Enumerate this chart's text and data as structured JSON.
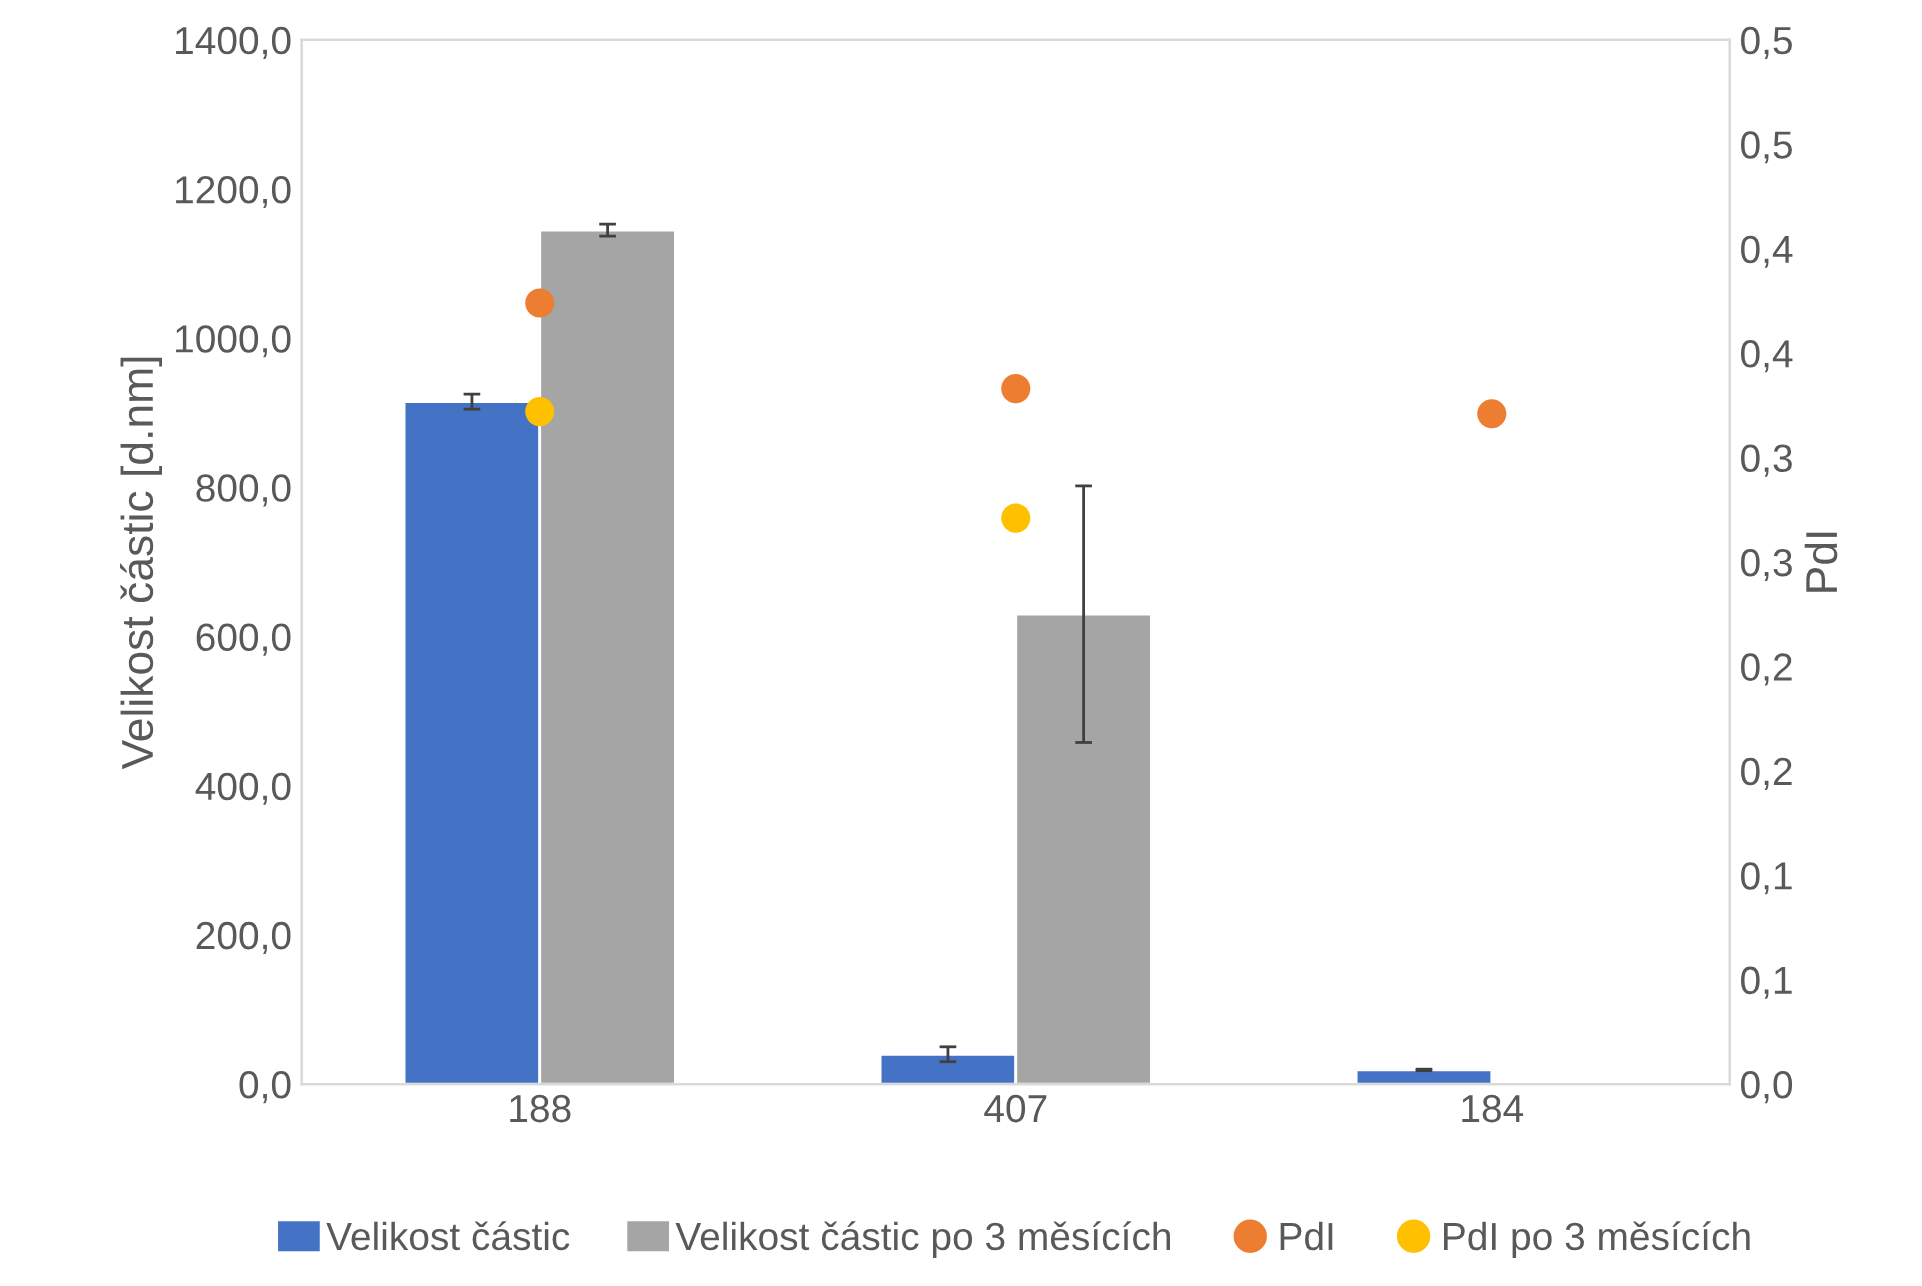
{
  "chart_data": {
    "type": "bar",
    "ylabel": "Velikost částic [d.nm]",
    "y2label": "PdI",
    "categories": [
      "188",
      "407",
      "184"
    ],
    "series": [
      {
        "name": "Velikost částic",
        "color": "#4472c4",
        "values": [
          915,
          40,
          19
        ],
        "errors": [
          10,
          10,
          1
        ]
      },
      {
        "name": "Velikost částic po 3 měsících",
        "color": "#a5a5a5",
        "values": [
          1145,
          630,
          null
        ],
        "errors": [
          8,
          172,
          null
        ]
      },
      {
        "name": "PdI",
        "type": "scatter",
        "axis": "y2",
        "color": "#ed7d31",
        "x": [
          "188",
          "407",
          "184"
        ],
        "values": [
          0.374,
          0.333,
          0.321
        ]
      },
      {
        "name": "PdI po 3 měsících",
        "type": "scatter",
        "axis": "y2",
        "color": "#ffc000",
        "x": [
          "188",
          "407",
          "184"
        ],
        "values": [
          0.322,
          0.271,
          null
        ]
      }
    ],
    "ylim": [
      0,
      1400
    ],
    "yticks": [
      {
        "value": 0,
        "label": "0,0"
      },
      {
        "value": 200,
        "label": "200,0"
      },
      {
        "value": 400,
        "label": "400,0"
      },
      {
        "value": 600,
        "label": "600,0"
      },
      {
        "value": 800,
        "label": "800,0"
      },
      {
        "value": 1000,
        "label": "1000,0"
      },
      {
        "value": 1200,
        "label": "1200,0"
      },
      {
        "value": 1400,
        "label": "1400,0"
      }
    ],
    "y2lim": [
      0,
      0.5
    ],
    "y2ticks": [
      {
        "value": 0,
        "label": "0,0"
      },
      {
        "value": 0.05,
        "label": "0,1"
      },
      {
        "value": 0.1,
        "label": "0,1"
      },
      {
        "value": 0.15,
        "label": "0,2"
      },
      {
        "value": 0.2,
        "label": "0,2"
      },
      {
        "value": 0.25,
        "label": "0,3"
      },
      {
        "value": 0.3,
        "label": "0,3"
      },
      {
        "value": 0.35,
        "label": "0,4"
      },
      {
        "value": 0.4,
        "label": "0,4"
      },
      {
        "value": 0.45,
        "label": "0,5"
      },
      {
        "value": 0.5,
        "label": "0,5"
      }
    ],
    "grid": false,
    "legend": "bottom",
    "marker": "circle"
  }
}
